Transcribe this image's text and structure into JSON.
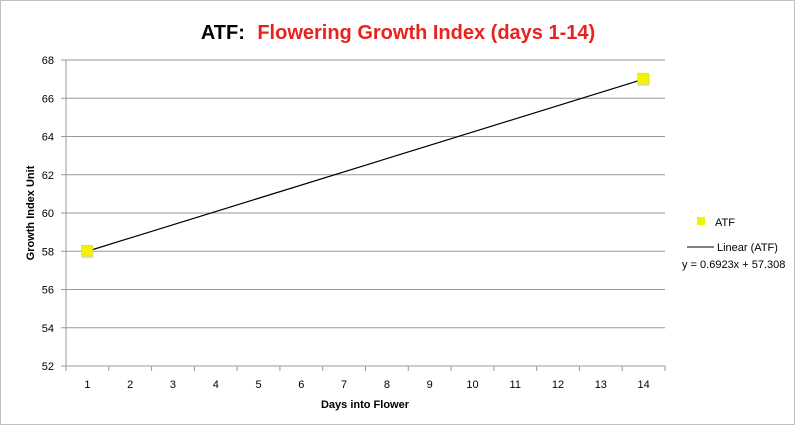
{
  "chart_data": {
    "type": "scatter",
    "title_prefix": "ATF:",
    "title_main": "Flowering Growth Index (days 1-14)",
    "title_main_color": "#e8231e",
    "xlabel": "Days into Flower",
    "ylabel": "Growth Index Unit",
    "x_ticks": [
      1,
      2,
      3,
      4,
      5,
      6,
      7,
      8,
      9,
      10,
      11,
      12,
      13,
      14
    ],
    "y_ticks": [
      52,
      54,
      56,
      58,
      60,
      62,
      64,
      66,
      68
    ],
    "xlim": [
      0.5,
      14.5
    ],
    "ylim": [
      52,
      68
    ],
    "grid": "horizontal",
    "series": [
      {
        "name": "ATF",
        "color": "#f5f200",
        "marker": "square",
        "points": [
          {
            "x": 1,
            "y": 58
          },
          {
            "x": 14,
            "y": 67
          }
        ]
      }
    ],
    "trendline": {
      "name": "Linear (ATF)",
      "color": "#000000",
      "slope": 0.6923,
      "intercept": 57.308,
      "x_range": [
        1,
        14
      ],
      "equation_label": "y = 0.6923x + 57.308"
    },
    "legend_position": "right"
  }
}
